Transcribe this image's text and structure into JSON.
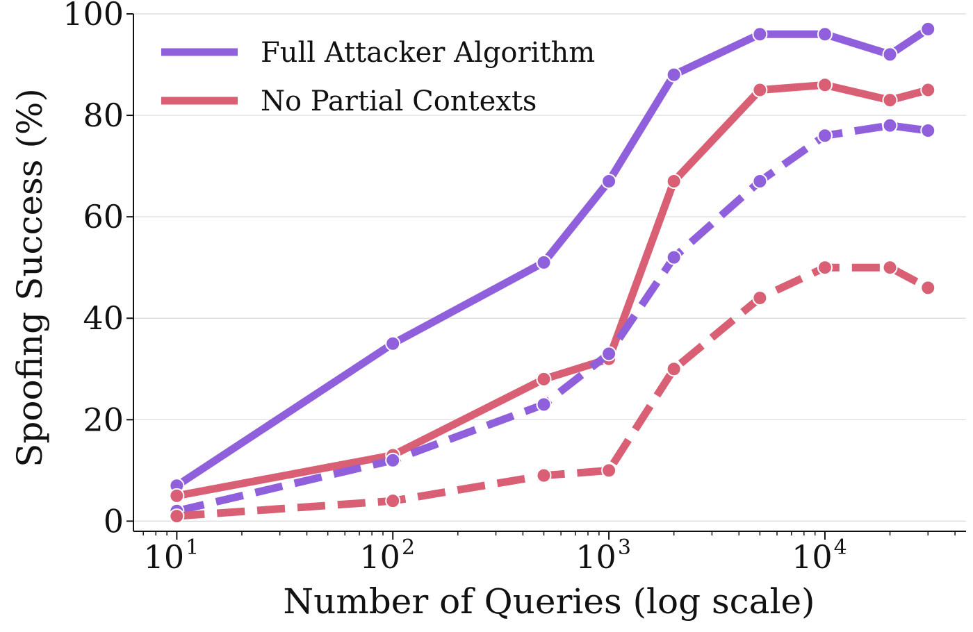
{
  "chart_data": {
    "type": "line",
    "xlabel": "Number of Queries (log scale)",
    "ylabel": "Spoofing Success (%)",
    "xscale": "log",
    "xlim": [
      6.3,
      45000
    ],
    "ylim": [
      -2,
      100
    ],
    "grid": "horizontal",
    "legend_position": "top-left",
    "x_ticks": [
      {
        "value": 10,
        "base": "10",
        "exp": "1"
      },
      {
        "value": 100,
        "base": "10",
        "exp": "2"
      },
      {
        "value": 1000,
        "base": "10",
        "exp": "3"
      },
      {
        "value": 10000,
        "base": "10",
        "exp": "4"
      }
    ],
    "y_ticks": [
      0,
      20,
      40,
      60,
      80,
      100
    ],
    "series": [
      {
        "name": "Full Attacker Algorithm",
        "color": "#9060dc",
        "dashed": false,
        "x": [
          10,
          100,
          500,
          1000,
          2000,
          5000,
          10000,
          20000,
          30000
        ],
        "y": [
          7,
          35,
          51,
          67,
          88,
          96,
          96,
          92,
          97
        ]
      },
      {
        "name": "No Partial Contexts",
        "color": "#d95f75",
        "dashed": false,
        "x": [
          10,
          100,
          500,
          1000,
          2000,
          5000,
          10000,
          20000,
          30000
        ],
        "y": [
          5,
          13,
          28,
          32,
          67,
          85,
          86,
          83,
          85
        ]
      },
      {
        "color": "#9060dc",
        "dashed": true,
        "x": [
          10,
          100,
          500,
          1000,
          2000,
          5000,
          10000,
          20000,
          30000
        ],
        "y": [
          2,
          12,
          23,
          33,
          52,
          67,
          76,
          78,
          77
        ]
      },
      {
        "color": "#d95f75",
        "dashed": true,
        "x": [
          10,
          100,
          500,
          1000,
          2000,
          5000,
          10000,
          20000,
          30000
        ],
        "y": [
          1,
          4,
          9,
          10,
          30,
          44,
          50,
          50,
          46
        ]
      }
    ]
  }
}
